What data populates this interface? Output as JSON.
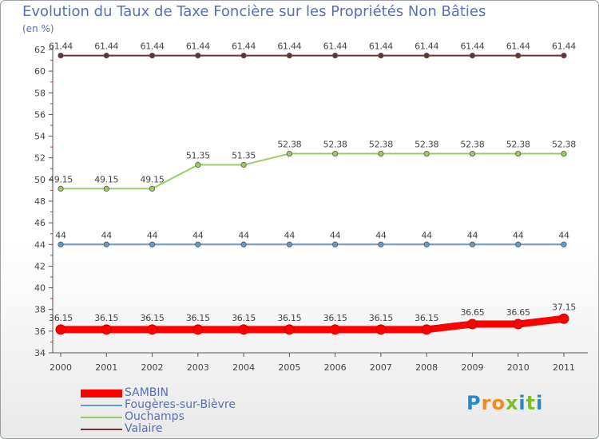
{
  "title": "Evolution du Taux de Taxe Foncière sur les Propriétés Non Bâties",
  "unit_label": "(en %)",
  "brand": {
    "name": "Proxiti",
    "letters": [
      "P",
      "r",
      "o",
      "x",
      "i",
      "t",
      "i"
    ],
    "colors": [
      "#2f86c7",
      "#f08a24",
      "#f08a24",
      "#7dbf2a",
      "#2f86c7",
      "#7dbf2a",
      "#2f86c7"
    ]
  },
  "chart_data": {
    "type": "line",
    "title": "Evolution du Taux de Taxe Foncière sur les Propriétés Non Bâties",
    "ylabel": "(en %)",
    "xlabel": "",
    "ylim": [
      34,
      62
    ],
    "yticks": [
      34,
      36,
      38,
      40,
      42,
      44,
      46,
      48,
      50,
      52,
      54,
      56,
      58,
      60,
      62
    ],
    "categories": [
      "2000",
      "2001",
      "2002",
      "2003",
      "2004",
      "2005",
      "2006",
      "2007",
      "2008",
      "2009",
      "2010",
      "2011"
    ],
    "series": [
      {
        "name": "SAMBIN",
        "color": "#ff0000",
        "thick": true,
        "values": [
          36.15,
          36.15,
          36.15,
          36.15,
          36.15,
          36.15,
          36.15,
          36.15,
          36.15,
          36.65,
          36.65,
          37.15
        ]
      },
      {
        "name": "Fougères-sur-Bièvre",
        "color": "#6699cc",
        "values": [
          44,
          44,
          44,
          44,
          44,
          44,
          44,
          44,
          44,
          44,
          44,
          44
        ]
      },
      {
        "name": "Ouchamps",
        "color": "#99cc66",
        "values": [
          49.15,
          49.15,
          49.15,
          51.35,
          51.35,
          52.38,
          52.38,
          52.38,
          52.38,
          52.38,
          52.38,
          52.38
        ]
      },
      {
        "name": "Valaire",
        "color": "#663333",
        "values": [
          61.44,
          61.44,
          61.44,
          61.44,
          61.44,
          61.44,
          61.44,
          61.44,
          61.44,
          61.44,
          61.44,
          61.44
        ]
      }
    ],
    "legend_position": "bottom-left"
  }
}
